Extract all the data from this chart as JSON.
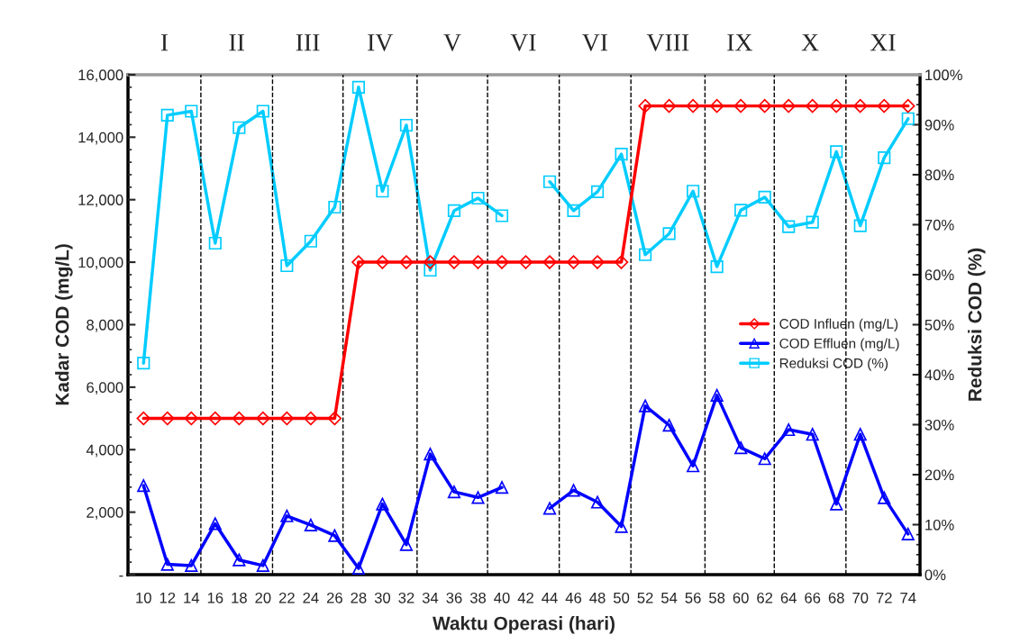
{
  "chart_data": {
    "type": "line",
    "xlabel": "Waktu Operasi (hari)",
    "ylabel": "Kadar COD (mg/L)",
    "y2label": "Reduksi COD (%)",
    "x": [
      10,
      12,
      14,
      16,
      18,
      20,
      22,
      24,
      26,
      28,
      30,
      32,
      34,
      36,
      38,
      40,
      42,
      44,
      46,
      48,
      50,
      52,
      54,
      56,
      58,
      60,
      62,
      64,
      66,
      68,
      70,
      72,
      74
    ],
    "series": [
      {
        "name": "COD Influen (mg/L)",
        "color": "#ff0000",
        "marker": "diamond",
        "values": [
          5000,
          5000,
          5000,
          5000,
          5000,
          5000,
          5000,
          5000,
          5000,
          10000,
          10000,
          10000,
          10000,
          10000,
          10000,
          10000,
          10000,
          10000,
          10000,
          10000,
          10000,
          15000,
          15000,
          15000,
          15000,
          15000,
          15000,
          15000,
          15000,
          15000,
          15000,
          15000,
          15000
        ]
      },
      {
        "name": "COD Effluen (mg/L)",
        "color": "#0000ff",
        "marker": "triangle",
        "values": [
          2850,
          330,
          290,
          1630,
          470,
          290,
          1880,
          1590,
          1250,
          200,
          2260,
          960,
          3860,
          2650,
          2470,
          2790,
          null,
          2120,
          2700,
          2320,
          1540,
          5400,
          4780,
          3480,
          5740,
          4060,
          3710,
          4640,
          4490,
          2260,
          4490,
          2460,
          1300
        ]
      },
      {
        "name": "Reduksi COD (%)",
        "color": "#00ccff",
        "marker": "square",
        "axis": "y2",
        "values": [
          42.3,
          91.9,
          92.7,
          66.3,
          89.4,
          92.7,
          61.8,
          66.7,
          73.5,
          97.5,
          76.7,
          89.9,
          60.9,
          72.8,
          75.3,
          71.8,
          null,
          78.6,
          72.8,
          76.6,
          84.1,
          64.0,
          68.2,
          76.7,
          61.6,
          72.9,
          75.5,
          69.6,
          70.5,
          84.6,
          69.8,
          83.4,
          91.2
        ]
      }
    ],
    "xlim": [
      8.7,
      75
    ],
    "xticks": [
      10,
      12,
      14,
      16,
      18,
      20,
      22,
      24,
      26,
      28,
      30,
      32,
      34,
      36,
      38,
      40,
      42,
      44,
      46,
      48,
      50,
      52,
      54,
      56,
      58,
      60,
      62,
      64,
      66,
      68,
      70,
      72,
      74
    ],
    "ylim": [
      0,
      16000
    ],
    "yticks": [
      {
        "value": 0,
        "label": "-"
      },
      {
        "value": 2000,
        "label": "2,000"
      },
      {
        "value": 4000,
        "label": "4,000"
      },
      {
        "value": 6000,
        "label": "6,000"
      },
      {
        "value": 8000,
        "label": "8,000"
      },
      {
        "value": 10000,
        "label": "10,000"
      },
      {
        "value": 12000,
        "label": "12,000"
      },
      {
        "value": 14000,
        "label": "14,000"
      },
      {
        "value": 16000,
        "label": "16,000"
      }
    ],
    "y2lim": [
      0,
      100
    ],
    "y2ticks": [
      {
        "value": 0,
        "label": "0%"
      },
      {
        "value": 10,
        "label": "10%"
      },
      {
        "value": 20,
        "label": "20%"
      },
      {
        "value": 30,
        "label": "30%"
      },
      {
        "value": 40,
        "label": "40%"
      },
      {
        "value": 50,
        "label": "50%"
      },
      {
        "value": 60,
        "label": "60%"
      },
      {
        "value": 70,
        "label": "70%"
      },
      {
        "value": 80,
        "label": "80%"
      },
      {
        "value": 90,
        "label": "90%"
      },
      {
        "value": 100,
        "label": "100%"
      }
    ],
    "ref_lines": [
      {
        "axis": "x",
        "value": 14.8,
        "line_style": "dashed",
        "color": "#000000"
      },
      {
        "axis": "x",
        "value": 20.8,
        "line_style": "dashed",
        "color": "#000000"
      },
      {
        "axis": "x",
        "value": 26.7,
        "line_style": "dashed",
        "color": "#000000"
      },
      {
        "axis": "x",
        "value": 32.9,
        "line_style": "dashed",
        "color": "#000000"
      },
      {
        "axis": "x",
        "value": 38.8,
        "line_style": "dashed",
        "color": "#000000"
      },
      {
        "axis": "x",
        "value": 44.8,
        "line_style": "dashed",
        "color": "#000000"
      },
      {
        "axis": "x",
        "value": 50.8,
        "line_style": "dashed",
        "color": "#000000"
      },
      {
        "axis": "x",
        "value": 57,
        "line_style": "dashed",
        "color": "#000000"
      },
      {
        "axis": "x",
        "value": 62.8,
        "line_style": "dashed",
        "color": "#000000"
      },
      {
        "axis": "x",
        "value": 68.8,
        "line_style": "dashed",
        "color": "#000000"
      }
    ],
    "annotations": [
      "I",
      "II",
      "III",
      "IV",
      "V",
      "VI",
      "VI",
      "VIII",
      "IX",
      "X",
      "XI"
    ],
    "grid": false,
    "legend": "center right",
    "line_style": "solid"
  }
}
